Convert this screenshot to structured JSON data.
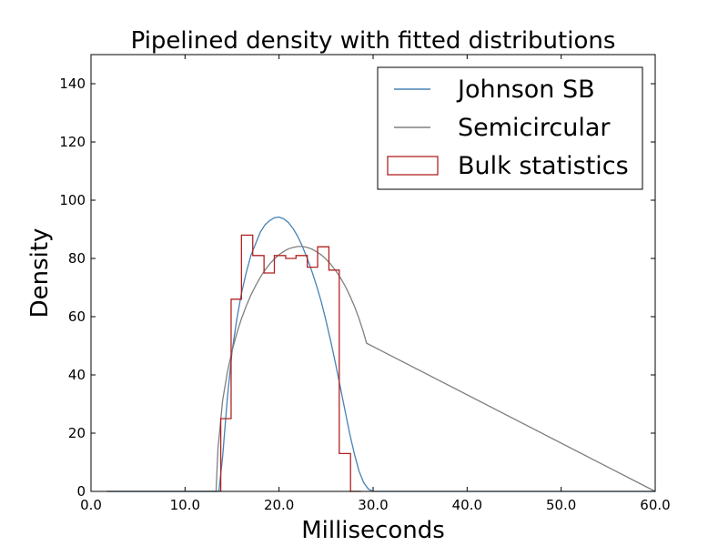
{
  "chart_data": {
    "type": "line",
    "title": "Pipelined density with fitted distributions",
    "xlabel": "Milliseconds",
    "ylabel": "Density",
    "xlim": [
      0,
      60
    ],
    "ylim": [
      0,
      150
    ],
    "x_ticks": [
      0,
      10,
      20,
      30,
      40,
      50,
      60
    ],
    "x_tick_labels": [
      "0.0",
      "10.0",
      "20.0",
      "30.0",
      "40.0",
      "50.0",
      "60.0"
    ],
    "y_ticks": [
      0,
      20,
      40,
      60,
      80,
      100,
      120,
      140
    ],
    "y_tick_labels": [
      "0",
      "20",
      "40",
      "60",
      "80",
      "100",
      "120",
      "140"
    ],
    "grid": false,
    "legend_position": "top-right",
    "series": [
      {
        "name": "Johnson SB",
        "kind": "line",
        "color": "#4682b4",
        "x": [
          1.7,
          13.6,
          14.0,
          14.5,
          15.0,
          15.5,
          16.0,
          16.5,
          17.0,
          17.5,
          18.0,
          18.5,
          19.0,
          19.5,
          20.0,
          20.5,
          21.0,
          21.5,
          22.0,
          22.5,
          23.0,
          23.5,
          24.0,
          24.5,
          25.0,
          25.5,
          26.0,
          26.5,
          27.0,
          27.5,
          28.0,
          28.5,
          29.0,
          29.5,
          30.0,
          60.0
        ],
        "y": [
          0,
          0,
          12,
          32,
          48,
          59,
          68,
          75,
          81,
          85,
          89,
          91.5,
          93,
          94,
          94.2,
          93.6,
          92.3,
          90.2,
          87.5,
          84,
          80,
          75.5,
          70.5,
          65,
          58.5,
          51.5,
          44,
          36,
          28,
          20,
          13,
          7,
          3,
          0.8,
          0,
          0
        ]
      },
      {
        "name": "Semicircular",
        "kind": "line",
        "color": "#808080",
        "x": [
          1.7,
          13.3,
          13.5,
          14.0,
          14.5,
          15.0,
          15.5,
          16.0,
          16.5,
          17.0,
          17.5,
          18.0,
          18.5,
          19.0,
          19.5,
          20.0,
          20.5,
          21.0,
          21.5,
          22.0,
          22.5,
          23.0,
          23.5,
          24.0,
          24.5,
          25.0,
          25.5,
          26.0,
          26.5,
          27.0,
          27.5,
          28.0,
          28.5,
          29.0,
          29.3,
          60.0
        ],
        "y": [
          0,
          0,
          14.6,
          31.3,
          40.9,
          48.2,
          54.2,
          59.3,
          63.6,
          67.4,
          70.6,
          73.5,
          76.0,
          78.1,
          79.8,
          81.3,
          82.4,
          83.3,
          83.8,
          84.1,
          84.1,
          83.8,
          83.2,
          82.3,
          81.2,
          79.7,
          78.0,
          75.9,
          73.5,
          70.7,
          67.4,
          63.7,
          59.4,
          54.4,
          50.9,
          0
        ]
      },
      {
        "name": "Bulk statistics",
        "kind": "step-histogram",
        "color": "#b22222",
        "bin_edges": [
          13.8,
          14.9,
          16.0,
          17.2,
          18.4,
          19.5,
          20.7,
          21.8,
          23.0,
          24.1,
          25.3,
          26.4,
          27.6,
          28.7
        ],
        "values": [
          25,
          66,
          88,
          81,
          75,
          81,
          80,
          81,
          77,
          84,
          76,
          13,
          0
        ]
      }
    ]
  }
}
